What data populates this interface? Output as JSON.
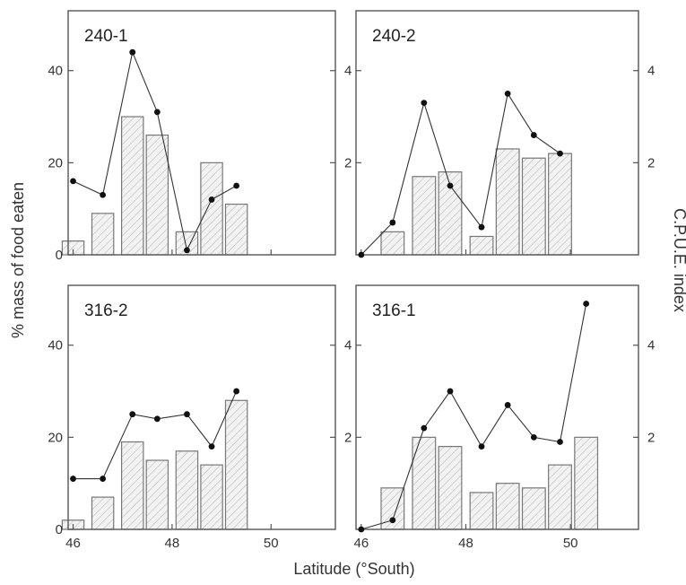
{
  "figure": {
    "left_axis_label": "% mass of food eaten",
    "right_axis_label": "C.P.U.E. index",
    "x_axis_label": "Latitude (°South)"
  },
  "chart_data": [
    {
      "type": "bar",
      "title": "240-1",
      "xlim": [
        45.9,
        51.3
      ],
      "ylim": [
        0,
        53
      ],
      "y2lim": [
        0,
        5.3
      ],
      "yticks": [
        0,
        20,
        40
      ],
      "y2ticks": [
        2,
        4
      ],
      "xticks": [
        46,
        48,
        50
      ],
      "bars": {
        "name": "% mass of food eaten",
        "x": [
          46.0,
          46.6,
          47.2,
          47.7,
          48.3,
          48.8,
          49.3
        ],
        "values": [
          3,
          9,
          30,
          26,
          5,
          20,
          11
        ]
      },
      "line": {
        "name": "C.P.U.E. index",
        "x": [
          46.0,
          46.6,
          47.2,
          47.7,
          48.3,
          48.8,
          49.3
        ],
        "values": [
          1.6,
          1.3,
          4.4,
          3.1,
          0.1,
          1.2,
          1.5
        ]
      }
    },
    {
      "type": "bar",
      "title": "240-2",
      "xlim": [
        45.9,
        51.3
      ],
      "ylim": [
        0,
        53
      ],
      "y2lim": [
        0,
        5.3
      ],
      "yticks": [
        0,
        20,
        40
      ],
      "y2ticks": [
        2,
        4
      ],
      "xticks": [
        46,
        48,
        50
      ],
      "bars": {
        "name": "% mass of food eaten",
        "x": [
          46.6,
          47.2,
          47.7,
          48.3,
          48.8,
          49.3,
          49.8
        ],
        "values": [
          5,
          17,
          18,
          4,
          23,
          21,
          22
        ]
      },
      "line": {
        "name": "C.P.U.E. index",
        "x": [
          46.0,
          46.6,
          47.2,
          47.7,
          48.3,
          48.8,
          49.3,
          49.8
        ],
        "values": [
          0,
          0.7,
          3.3,
          1.5,
          0.6,
          3.5,
          2.6,
          2.2
        ]
      }
    },
    {
      "type": "bar",
      "title": "316-2",
      "xlim": [
        45.9,
        51.3
      ],
      "ylim": [
        0,
        53
      ],
      "y2lim": [
        0,
        5.3
      ],
      "yticks": [
        0,
        20,
        40
      ],
      "y2ticks": [
        2,
        4
      ],
      "xticks": [
        46,
        48,
        50
      ],
      "bars": {
        "name": "% mass of food eaten",
        "x": [
          46.0,
          46.6,
          47.2,
          47.7,
          48.3,
          48.8,
          49.3
        ],
        "values": [
          2,
          7,
          19,
          15,
          17,
          14,
          28
        ]
      },
      "line": {
        "name": "C.P.U.E. index",
        "x": [
          46.0,
          46.6,
          47.2,
          47.7,
          48.3,
          48.8,
          49.3
        ],
        "values": [
          1.1,
          1.1,
          2.5,
          2.4,
          2.5,
          1.8,
          3.0
        ]
      }
    },
    {
      "type": "bar",
      "title": "316-1",
      "xlim": [
        45.9,
        51.3
      ],
      "ylim": [
        0,
        53
      ],
      "y2lim": [
        0,
        5.3
      ],
      "yticks": [
        0,
        20,
        40
      ],
      "y2ticks": [
        2,
        4
      ],
      "xticks": [
        46,
        48,
        50
      ],
      "bars": {
        "name": "% mass of food eaten",
        "x": [
          46.6,
          47.2,
          47.7,
          48.3,
          48.8,
          49.3,
          49.8,
          50.3
        ],
        "values": [
          9,
          20,
          18,
          8,
          10,
          9,
          14,
          20
        ]
      },
      "line": {
        "name": "C.P.U.E. index",
        "x": [
          46.0,
          46.6,
          47.2,
          47.7,
          48.3,
          48.8,
          49.3,
          49.8,
          50.3
        ],
        "values": [
          0,
          0.2,
          2.2,
          3.0,
          1.8,
          2.7,
          2.0,
          1.9,
          4.9
        ]
      }
    }
  ]
}
